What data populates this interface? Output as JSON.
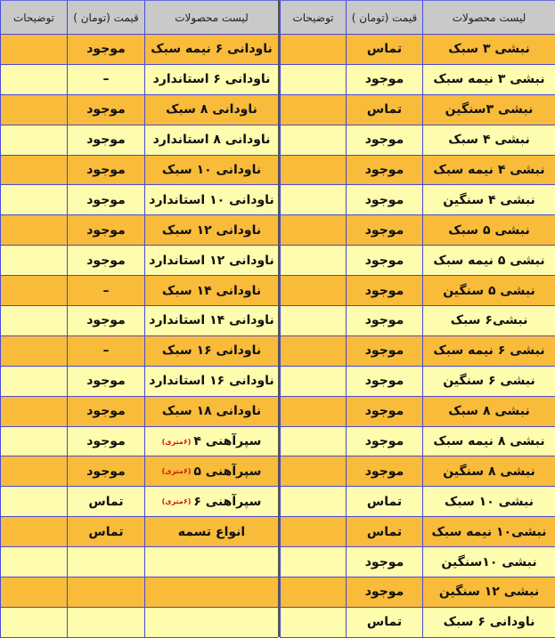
{
  "colors": {
    "header": "#c9c9c9",
    "row_orange": "#f8bb3a",
    "row_yellow": "#fefcae",
    "grid": "#4a4ad8",
    "note": "#d01010"
  },
  "headers": {
    "product": "لیست محصولات",
    "price": "قیمت (تومان )",
    "notes": "توضیحات"
  },
  "right_table": [
    {
      "product": "نبشی ۳ سبک",
      "price": "تماس",
      "notes": ""
    },
    {
      "product": "نبشی ۳ نیمه سبک",
      "price": "موجود",
      "notes": ""
    },
    {
      "product": "نبشی ۳سنگین",
      "price": "تماس",
      "notes": ""
    },
    {
      "product": "نبشی ۴ سبک",
      "price": "موجود",
      "notes": ""
    },
    {
      "product": "نبشی ۴ نیمه سبک",
      "price": "موجود",
      "notes": ""
    },
    {
      "product": "نبشی ۴ سنگین",
      "price": "موجود",
      "notes": ""
    },
    {
      "product": "نبشی ۵ سبک",
      "price": "موجود",
      "notes": ""
    },
    {
      "product": "نبشی ۵ نیمه سبک",
      "price": "موجود",
      "notes": ""
    },
    {
      "product": "نبشی ۵ سنگین",
      "price": "موجود",
      "notes": ""
    },
    {
      "product": "نبشی۶ سبک",
      "price": "موجود",
      "notes": ""
    },
    {
      "product": "نبشی ۶ نیمه سبک",
      "price": "موجود",
      "notes": ""
    },
    {
      "product": "نبشی ۶ سنگین",
      "price": "موجود",
      "notes": ""
    },
    {
      "product": "نبشی ۸ سبک",
      "price": "موجود",
      "notes": ""
    },
    {
      "product": "نبشی ۸ نیمه سبک",
      "price": "موجود",
      "notes": ""
    },
    {
      "product": "نبشی ۸ سنگین",
      "price": "موجود",
      "notes": ""
    },
    {
      "product": "نبشی ۱۰ سبک",
      "price": "تماس",
      "notes": ""
    },
    {
      "product": "نبشی۱۰ نیمه سبک",
      "price": "تماس",
      "notes": ""
    },
    {
      "product": "نبشی ۱۰سنگین",
      "price": "موجود",
      "notes": ""
    },
    {
      "product": "نبشی ۱۲ سنگین",
      "price": "موجود",
      "notes": ""
    },
    {
      "product": "ناودانی ۶ سبک",
      "price": "تماس",
      "notes": ""
    }
  ],
  "left_table": [
    {
      "product": "ناودانی ۶ نیمه سبک",
      "price": "موجود",
      "notes": ""
    },
    {
      "product": "ناودانی ۶ استاندارد",
      "price": "–",
      "notes": ""
    },
    {
      "product": "ناودانی ۸ سبک",
      "price": "موجود",
      "notes": ""
    },
    {
      "product": "ناودانی ۸ استاندارد",
      "price": "موجود",
      "notes": ""
    },
    {
      "product": "ناودانی ۱۰ سبک",
      "price": "موجود",
      "notes": ""
    },
    {
      "product": "ناودانی ۱۰ استاندارد",
      "price": "موجود",
      "notes": ""
    },
    {
      "product": "ناودانی ۱۲ سبک",
      "price": "موجود",
      "notes": ""
    },
    {
      "product": "ناودانی ۱۲ استاندارد",
      "price": "موجود",
      "notes": ""
    },
    {
      "product": "ناودانی ۱۴ سبک",
      "price": "–",
      "notes": ""
    },
    {
      "product": "ناودانی ۱۴ استاندارد",
      "price": "موجود",
      "notes": ""
    },
    {
      "product": "ناودانی ۱۶ سبک",
      "price": "–",
      "notes": ""
    },
    {
      "product": "ناودانی ۱۶ استاندارد",
      "price": "موجود",
      "notes": ""
    },
    {
      "product": "ناودانی ۱۸ سبک",
      "price": "موجود",
      "notes": ""
    },
    {
      "product": "سپرآهنی ۴",
      "product_note": "(۶متری)",
      "price": "موجود",
      "notes": ""
    },
    {
      "product": "سپرآهنی ۵",
      "product_note": "(۶متری)",
      "price": "موجود",
      "notes": ""
    },
    {
      "product": "سپرآهنی ۶",
      "product_note": "(۶متری)",
      "price": "تماس",
      "notes": ""
    },
    {
      "product": "انواع تسمه",
      "price": "تماس",
      "notes": ""
    },
    {
      "product": "",
      "price": "",
      "notes": ""
    },
    {
      "product": "",
      "price": "",
      "notes": ""
    },
    {
      "product": "",
      "price": "",
      "notes": ""
    }
  ]
}
